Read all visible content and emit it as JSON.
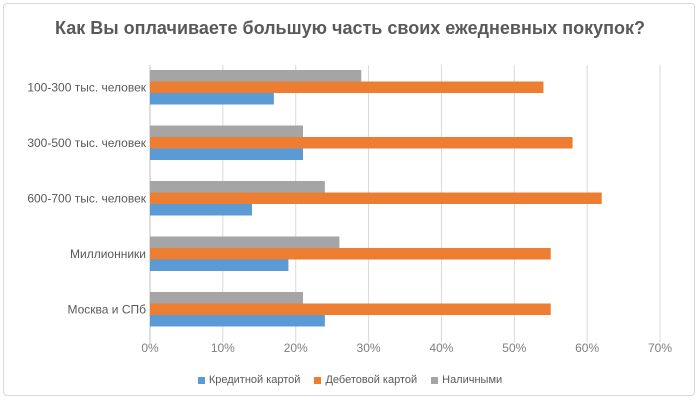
{
  "chart_data": {
    "type": "bar",
    "orientation": "horizontal",
    "title": "Как Вы оплачиваете большую часть своих ежедневных покупок?",
    "categories": [
      "100-300 тыс. человек",
      "300-500 тыс. человек",
      "600-700 тыс. человек",
      "Миллионники",
      "Москва и СПб"
    ],
    "series": [
      {
        "name": "Кредитной картой",
        "color": "#5b9bd5",
        "values": [
          17,
          21,
          14,
          19,
          24
        ]
      },
      {
        "name": "Дебетовой картой",
        "color": "#ed7d31",
        "values": [
          54,
          58,
          62,
          55,
          55
        ]
      },
      {
        "name": "Наличными",
        "color": "#a5a5a5",
        "values": [
          29,
          21,
          24,
          26,
          21
        ]
      }
    ],
    "xlim": [
      0,
      70
    ],
    "xticks": [
      "0%",
      "10%",
      "20%",
      "30%",
      "40%",
      "50%",
      "60%",
      "70%"
    ],
    "grid": true,
    "legend": "bottom"
  }
}
